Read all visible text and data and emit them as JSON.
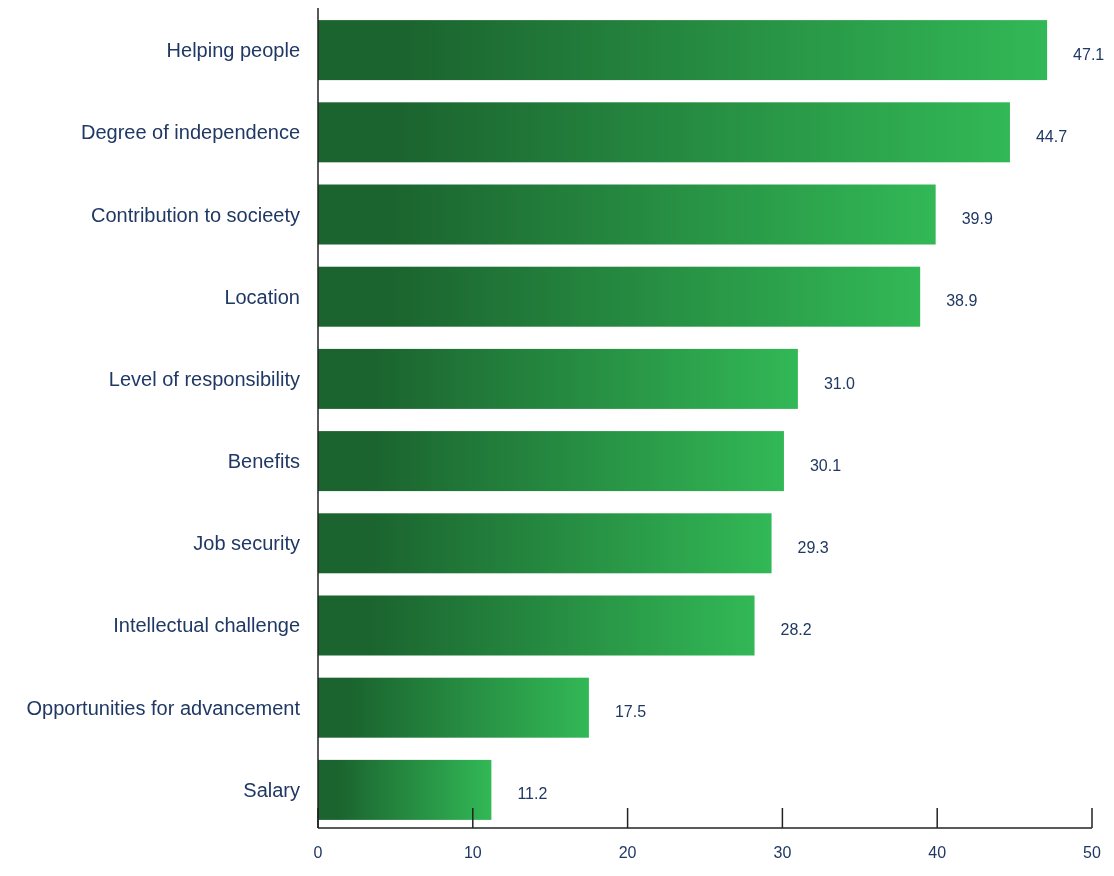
{
  "chart_data": {
    "type": "bar",
    "orientation": "horizontal",
    "categories": [
      "Helping people",
      "Degree of independence",
      "Contribution to socieety",
      "Location",
      "Level of responsibility",
      "Benefits",
      "Job security",
      "Intellectual challenge",
      "Opportunities for advancement",
      "Salary"
    ],
    "values": [
      47.1,
      44.7,
      39.9,
      38.9,
      31.0,
      30.1,
      29.3,
      28.2,
      17.5,
      11.2
    ],
    "value_labels": [
      "47.1",
      "44.7",
      "39.9",
      "38.9",
      "31.0",
      "30.1",
      "29.3",
      "28.2",
      "17.5",
      "11.2"
    ],
    "color": "#2a9a48",
    "xlim": [
      0,
      50
    ],
    "xticks": [
      0,
      10,
      20,
      30,
      40,
      50
    ],
    "grid": false
  }
}
